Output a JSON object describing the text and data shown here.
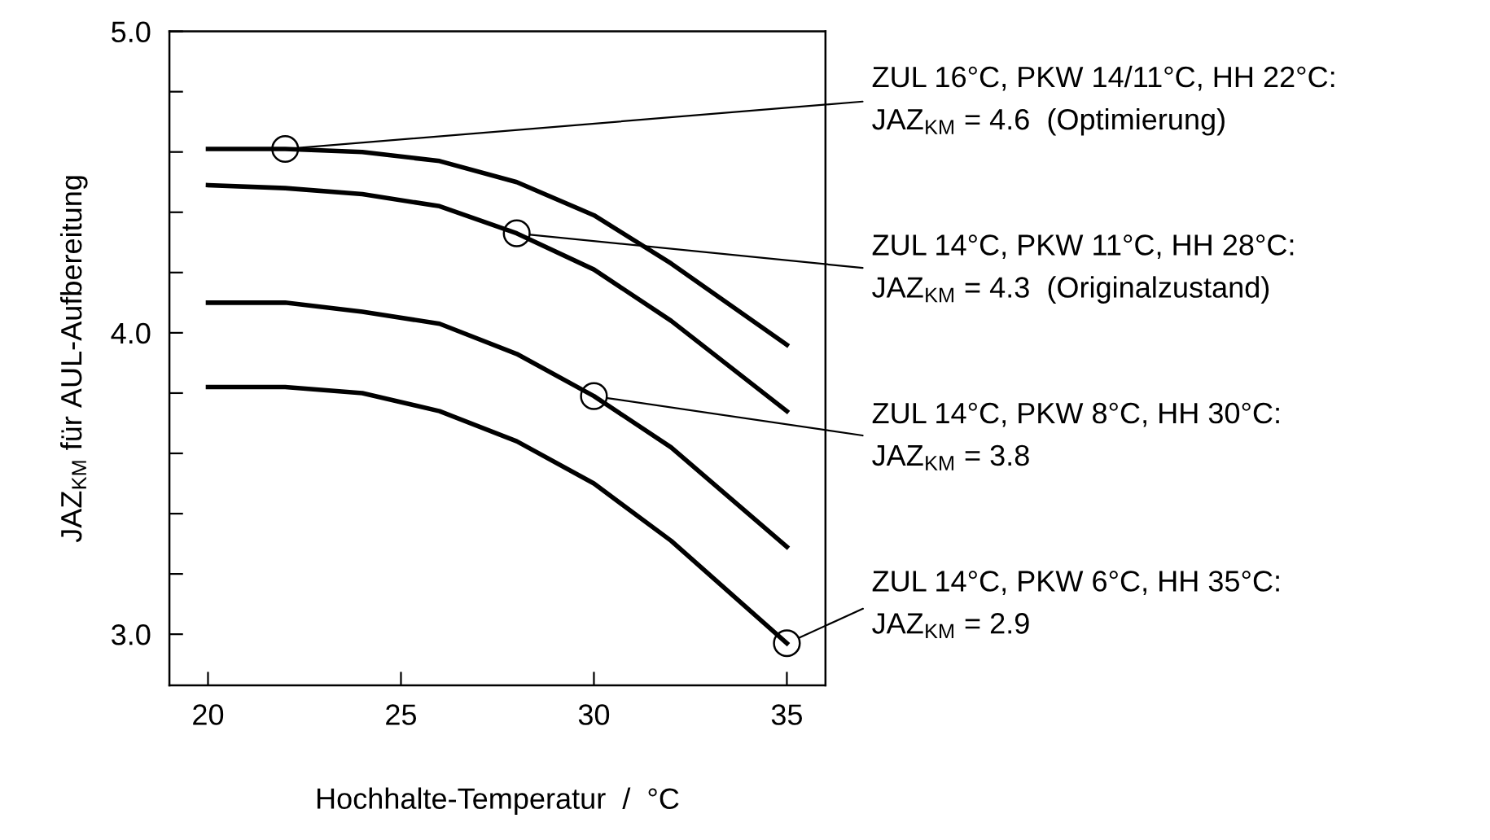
{
  "chart_data": {
    "type": "line",
    "xlabel": "Hochhalte-Temperatur  /  °C",
    "ylabel": "JAZ$_{KM}$ für AUL-Aufbereitung",
    "x": [
      20,
      22,
      24,
      26,
      28,
      30,
      32,
      35
    ],
    "series": [
      {
        "color": "#000000",
        "values": [
          4.61,
          4.61,
          4.6,
          4.57,
          4.5,
          4.39,
          4.23,
          3.96
        ]
      },
      {
        "color": "#000000",
        "values": [
          4.49,
          4.48,
          4.46,
          4.42,
          4.33,
          4.21,
          4.04,
          3.74
        ]
      },
      {
        "color": "#000000",
        "values": [
          4.1,
          4.1,
          4.07,
          4.03,
          3.93,
          3.79,
          3.62,
          3.29
        ]
      },
      {
        "color": "#000000",
        "values": [
          3.82,
          3.82,
          3.8,
          3.74,
          3.64,
          3.5,
          3.31,
          2.97
        ]
      },
      {
        "type": "scatter",
        "marker": "circle",
        "color": "#000000",
        "x": [
          22,
          28,
          30,
          35
        ],
        "values": [
          4.61,
          4.33,
          3.79,
          2.97
        ]
      }
    ],
    "annotations": [
      {
        "text": "ZUL 16°C, PKW 14/11°C, HH 22°C:\nJAZ$_{KM}$ = 4.6  (Optimierung)",
        "x": 22,
        "y": 4.61
      },
      {
        "text": "ZUL 14°C, PKW 11°C, HH 28°C:\nJAZ$_{KM}$ = 4.3  (Originalzustand)",
        "x": 28,
        "y": 4.33
      },
      {
        "text": "ZUL 14°C, PKW 8°C, HH 30°C:\nJAZ$_{KM}$ = 3.8",
        "x": 30,
        "y": 3.79
      },
      {
        "text": "ZUL 14°C, PKW 6°C, HH 35°C:\nJAZ$_{KM}$ = 2.9",
        "x": 35,
        "y": 2.97
      }
    ],
    "xlim": [
      19,
      36
    ],
    "xticks": [
      20,
      25,
      30,
      35
    ],
    "ylim": [
      2.83,
      5.0
    ],
    "yticks": [
      {
        "value": 3.0,
        "label": "3.0"
      },
      {
        "value": 3.2,
        "label": null
      },
      {
        "value": 3.4,
        "label": null
      },
      {
        "value": 3.6,
        "label": null
      },
      {
        "value": 3.8,
        "label": null
      },
      {
        "value": 4.0,
        "label": "4.0"
      },
      {
        "value": 4.2,
        "label": null
      },
      {
        "value": 4.4,
        "label": null
      },
      {
        "value": 4.6,
        "label": null
      },
      {
        "value": 4.8,
        "label": null
      },
      {
        "value": 5.0,
        "label": "5.0"
      }
    ],
    "grid": false
  }
}
